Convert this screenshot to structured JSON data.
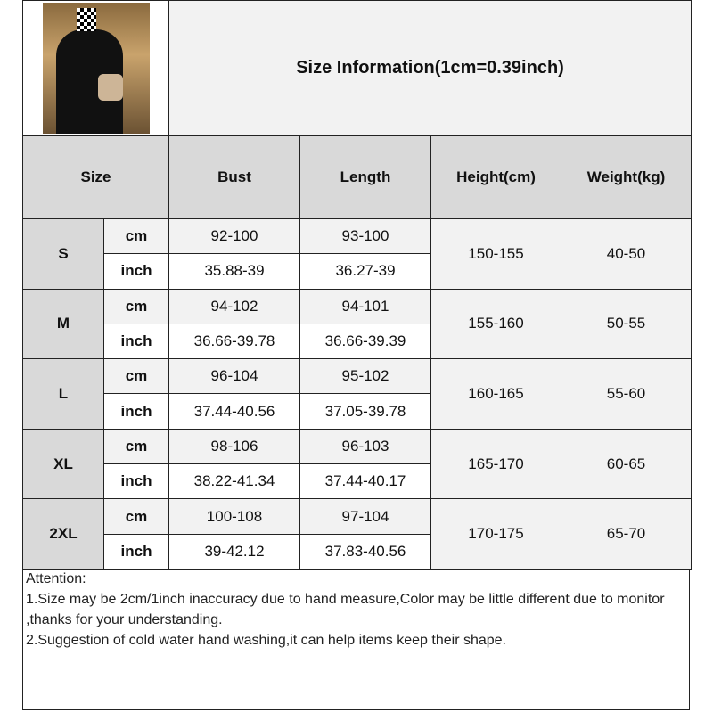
{
  "title": "Size Information(1cm=0.39inch)",
  "headers": {
    "size": "Size",
    "bust": "Bust",
    "length": "Length",
    "height": "Height(cm)",
    "weight": "Weight(kg)"
  },
  "units": {
    "cm": "cm",
    "inch": "inch"
  },
  "rows": [
    {
      "size": "S",
      "bust_cm": "92-100",
      "length_cm": "93-100",
      "bust_inch": "35.88-39",
      "length_inch": "36.27-39",
      "height": "150-155",
      "weight": "40-50"
    },
    {
      "size": "M",
      "bust_cm": "94-102",
      "length_cm": "94-101",
      "bust_inch": "36.66-39.78",
      "length_inch": "36.66-39.39",
      "height": "155-160",
      "weight": "50-55"
    },
    {
      "size": "L",
      "bust_cm": "96-104",
      "length_cm": "95-102",
      "bust_inch": "37.44-40.56",
      "length_inch": "37.05-39.78",
      "height": "160-165",
      "weight": "55-60"
    },
    {
      "size": "XL",
      "bust_cm": "98-106",
      "length_cm": "96-103",
      "bust_inch": "38.22-41.34",
      "length_inch": "37.44-40.17",
      "height": "165-170",
      "weight": "60-65"
    },
    {
      "size": "2XL",
      "bust_cm": "100-108",
      "length_cm": "97-104",
      "bust_inch": "39-42.12",
      "length_inch": "37.83-40.56",
      "height": "170-175",
      "weight": "65-70"
    }
  ],
  "attention": {
    "heading": "Attention:",
    "line1": "1.Size may be 2cm/1inch inaccuracy due to hand measure,Color may be little different due to monitor ,thanks for your understanding.",
    "line2": "2.Suggestion of cold water hand washing,it can help items keep their shape."
  }
}
